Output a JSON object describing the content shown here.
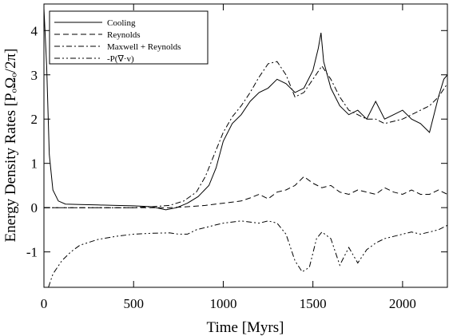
{
  "chart_data": {
    "type": "line",
    "xlabel": "Time [Myrs]",
    "ylabel": "Energy Density Rates [PₒΩₒ/2π]",
    "xlim": [
      0,
      2250
    ],
    "ylim": [
      -1.8,
      4.6
    ],
    "xticks": [
      0,
      500,
      1000,
      1500,
      2000
    ],
    "yticks": [
      -1,
      0,
      1,
      2,
      3,
      4
    ],
    "legend_position": "top-left",
    "series": [
      {
        "name": "Cooling",
        "style": "solid",
        "points": [
          [
            0,
            4.5
          ],
          [
            15,
            3.2
          ],
          [
            30,
            1.2
          ],
          [
            50,
            0.4
          ],
          [
            80,
            0.15
          ],
          [
            120,
            0.08
          ],
          [
            200,
            0.07
          ],
          [
            300,
            0.06
          ],
          [
            400,
            0.05
          ],
          [
            500,
            0.04
          ],
          [
            600,
            0.02
          ],
          [
            680,
            -0.05
          ],
          [
            740,
            0.0
          ],
          [
            800,
            0.1
          ],
          [
            860,
            0.25
          ],
          [
            920,
            0.5
          ],
          [
            960,
            0.9
          ],
          [
            1000,
            1.5
          ],
          [
            1050,
            1.9
          ],
          [
            1100,
            2.1
          ],
          [
            1150,
            2.4
          ],
          [
            1200,
            2.6
          ],
          [
            1250,
            2.7
          ],
          [
            1300,
            2.9
          ],
          [
            1350,
            2.8
          ],
          [
            1400,
            2.6
          ],
          [
            1450,
            2.7
          ],
          [
            1500,
            3.1
          ],
          [
            1530,
            3.6
          ],
          [
            1545,
            3.95
          ],
          [
            1560,
            3.3
          ],
          [
            1600,
            2.7
          ],
          [
            1650,
            2.3
          ],
          [
            1700,
            2.1
          ],
          [
            1750,
            2.2
          ],
          [
            1800,
            2.0
          ],
          [
            1850,
            2.4
          ],
          [
            1900,
            2.0
          ],
          [
            1950,
            2.1
          ],
          [
            2000,
            2.2
          ],
          [
            2050,
            2.0
          ],
          [
            2100,
            1.9
          ],
          [
            2150,
            1.7
          ],
          [
            2200,
            2.5
          ],
          [
            2230,
            2.9
          ],
          [
            2250,
            3.0
          ]
        ]
      },
      {
        "name": "Reynolds",
        "style": "dashed",
        "points": [
          [
            0,
            0.0
          ],
          [
            100,
            0.0
          ],
          [
            200,
            0.0
          ],
          [
            300,
            0.0
          ],
          [
            400,
            0.0
          ],
          [
            500,
            0.0
          ],
          [
            600,
            0.0
          ],
          [
            700,
            0.0
          ],
          [
            800,
            0.02
          ],
          [
            900,
            0.05
          ],
          [
            1000,
            0.1
          ],
          [
            1100,
            0.15
          ],
          [
            1150,
            0.22
          ],
          [
            1200,
            0.3
          ],
          [
            1250,
            0.2
          ],
          [
            1300,
            0.35
          ],
          [
            1350,
            0.4
          ],
          [
            1400,
            0.5
          ],
          [
            1450,
            0.7
          ],
          [
            1500,
            0.55
          ],
          [
            1550,
            0.45
          ],
          [
            1600,
            0.5
          ],
          [
            1650,
            0.35
          ],
          [
            1700,
            0.3
          ],
          [
            1750,
            0.4
          ],
          [
            1800,
            0.35
          ],
          [
            1850,
            0.3
          ],
          [
            1900,
            0.45
          ],
          [
            1950,
            0.35
          ],
          [
            2000,
            0.3
          ],
          [
            2050,
            0.4
          ],
          [
            2100,
            0.3
          ],
          [
            2150,
            0.3
          ],
          [
            2200,
            0.4
          ],
          [
            2250,
            0.3
          ]
        ]
      },
      {
        "name": "Maxwell + Reynolds",
        "style": "dashdot",
        "points": [
          [
            0,
            0.0
          ],
          [
            300,
            0.0
          ],
          [
            500,
            0.0
          ],
          [
            600,
            0.02
          ],
          [
            700,
            0.05
          ],
          [
            780,
            0.15
          ],
          [
            850,
            0.35
          ],
          [
            900,
            0.7
          ],
          [
            950,
            1.2
          ],
          [
            1000,
            1.7
          ],
          [
            1050,
            2.05
          ],
          [
            1100,
            2.3
          ],
          [
            1150,
            2.6
          ],
          [
            1200,
            2.95
          ],
          [
            1250,
            3.25
          ],
          [
            1300,
            3.3
          ],
          [
            1350,
            3.0
          ],
          [
            1400,
            2.5
          ],
          [
            1450,
            2.6
          ],
          [
            1500,
            2.9
          ],
          [
            1550,
            3.2
          ],
          [
            1600,
            2.9
          ],
          [
            1650,
            2.5
          ],
          [
            1700,
            2.2
          ],
          [
            1750,
            2.1
          ],
          [
            1800,
            2.0
          ],
          [
            1850,
            2.0
          ],
          [
            1900,
            1.9
          ],
          [
            1950,
            1.95
          ],
          [
            2000,
            2.0
          ],
          [
            2050,
            2.1
          ],
          [
            2100,
            2.2
          ],
          [
            2150,
            2.3
          ],
          [
            2200,
            2.5
          ],
          [
            2250,
            2.8
          ]
        ]
      },
      {
        "name": "-P(∇·v)",
        "style": "dashdotdot",
        "points": [
          [
            25,
            -1.8
          ],
          [
            50,
            -1.5
          ],
          [
            100,
            -1.2
          ],
          [
            150,
            -1.0
          ],
          [
            200,
            -0.85
          ],
          [
            300,
            -0.72
          ],
          [
            400,
            -0.65
          ],
          [
            500,
            -0.6
          ],
          [
            600,
            -0.58
          ],
          [
            700,
            -0.57
          ],
          [
            750,
            -0.6
          ],
          [
            800,
            -0.6
          ],
          [
            850,
            -0.5
          ],
          [
            900,
            -0.45
          ],
          [
            950,
            -0.4
          ],
          [
            1000,
            -0.35
          ],
          [
            1100,
            -0.3
          ],
          [
            1200,
            -0.35
          ],
          [
            1250,
            -0.3
          ],
          [
            1300,
            -0.35
          ],
          [
            1350,
            -0.6
          ],
          [
            1400,
            -1.2
          ],
          [
            1440,
            -1.45
          ],
          [
            1480,
            -1.35
          ],
          [
            1520,
            -0.7
          ],
          [
            1550,
            -0.55
          ],
          [
            1600,
            -0.7
          ],
          [
            1650,
            -1.3
          ],
          [
            1700,
            -0.9
          ],
          [
            1750,
            -1.25
          ],
          [
            1800,
            -0.95
          ],
          [
            1850,
            -0.8
          ],
          [
            1900,
            -0.7
          ],
          [
            1950,
            -0.65
          ],
          [
            2000,
            -0.6
          ],
          [
            2050,
            -0.55
          ],
          [
            2100,
            -0.6
          ],
          [
            2150,
            -0.55
          ],
          [
            2200,
            -0.5
          ],
          [
            2250,
            -0.4
          ]
        ]
      }
    ]
  }
}
